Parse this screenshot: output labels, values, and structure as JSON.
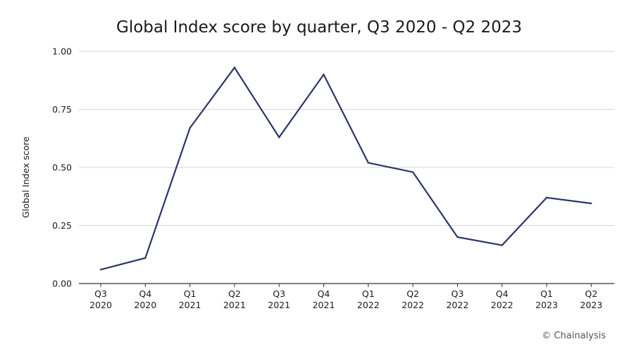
{
  "chart_data": {
    "type": "line",
    "title": "Global Index score by quarter, Q3 2020 - Q2 2023",
    "xlabel": "",
    "ylabel": "Global Index score",
    "categories": [
      [
        "Q3",
        "2020"
      ],
      [
        "Q4",
        "2020"
      ],
      [
        "Q1",
        "2021"
      ],
      [
        "Q2",
        "2021"
      ],
      [
        "Q3",
        "2021"
      ],
      [
        "Q4",
        "2021"
      ],
      [
        "Q1",
        "2022"
      ],
      [
        "Q2",
        "2022"
      ],
      [
        "Q3",
        "2022"
      ],
      [
        "Q4",
        "2022"
      ],
      [
        "Q1",
        "2023"
      ],
      [
        "Q2",
        "2023"
      ]
    ],
    "series": [
      {
        "values": [
          0.06,
          0.11,
          0.67,
          0.93,
          0.63,
          0.9,
          0.52,
          0.48,
          0.2,
          0.165,
          0.37,
          0.345
        ],
        "color": "#2c3569"
      }
    ],
    "ylim": [
      0,
      1.0
    ],
    "yticks": [
      "0.00",
      "0.25",
      "0.50",
      "0.75",
      "1.00"
    ],
    "grid": true,
    "gridColor": "#d6d6d6",
    "legend": "none"
  },
  "credit": "© Chainalysis"
}
